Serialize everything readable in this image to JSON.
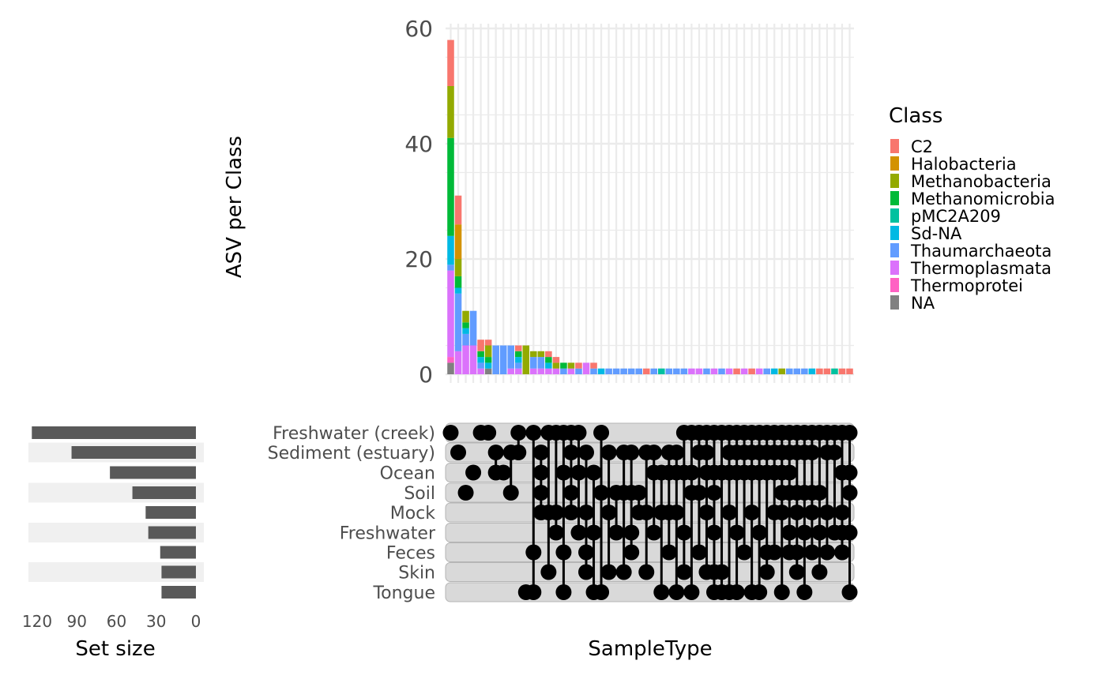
{
  "chart_data": {
    "type": "upset",
    "xlabel": "SampleType",
    "ylabel": "ASV per Class",
    "set_size_label": "Set size",
    "ylim": [
      0,
      60
    ],
    "y_ticks": [
      0,
      20,
      40,
      60
    ],
    "set_size_ticks": [
      120,
      90,
      60,
      30,
      0
    ],
    "set_size_range": [
      0,
      125
    ],
    "legend": {
      "title": "Class",
      "position": "right",
      "entries": [
        {
          "name": "C2",
          "color": "#F8766D"
        },
        {
          "name": "Halobacteria",
          "color": "#D39200"
        },
        {
          "name": "Methanobacteria",
          "color": "#93AA00"
        },
        {
          "name": "Methanomicrobia",
          "color": "#00BA38"
        },
        {
          "name": "pMC2A209",
          "color": "#00C19F"
        },
        {
          "name": "Sd-NA",
          "color": "#00B9E3"
        },
        {
          "name": "Thaumarchaeota",
          "color": "#619CFF"
        },
        {
          "name": "Thermoplasmata",
          "color": "#DB72FB"
        },
        {
          "name": "Thermoprotei",
          "color": "#FF61C3"
        },
        {
          "name": "NA",
          "color": "#808080"
        }
      ]
    },
    "sets": [
      {
        "name": "Freshwater (creek)",
        "size": 124
      },
      {
        "name": "Sediment (estuary)",
        "size": 94
      },
      {
        "name": "Ocean",
        "size": 65
      },
      {
        "name": "Soil",
        "size": 48
      },
      {
        "name": "Mock",
        "size": 38
      },
      {
        "name": "Freshwater",
        "size": 36
      },
      {
        "name": "Feces",
        "size": 27
      },
      {
        "name": "Skin",
        "size": 26
      },
      {
        "name": "Tongue",
        "size": 26
      }
    ],
    "intersections": [
      {
        "stack": [
          {
            "class": "NA",
            "value": 2
          },
          {
            "class": "Thermoprotei",
            "value": 1
          },
          {
            "class": "Thermoplasmata",
            "value": 15
          },
          {
            "class": "Thaumarchaeota",
            "value": 1
          },
          {
            "class": "Sd-NA",
            "value": 5
          },
          {
            "class": "Methanomicrobia",
            "value": 17
          },
          {
            "class": "Methanobacteria",
            "value": 9
          },
          {
            "class": "C2",
            "value": 8
          }
        ],
        "sets": [
          0
        ]
      },
      {
        "stack": [
          {
            "class": "Thermoplasmata",
            "value": 4
          },
          {
            "class": "Thaumarchaeota",
            "value": 10
          },
          {
            "class": "Sd-NA",
            "value": 1
          },
          {
            "class": "Methanomicrobia",
            "value": 2
          },
          {
            "class": "Methanobacteria",
            "value": 3
          },
          {
            "class": "Halobacteria",
            "value": 6
          },
          {
            "class": "C2",
            "value": 5
          }
        ],
        "sets": [
          1
        ]
      },
      {
        "stack": [
          {
            "class": "Thermoplasmata",
            "value": 5
          },
          {
            "class": "Thaumarchaeota",
            "value": 2
          },
          {
            "class": "Sd-NA",
            "value": 1
          },
          {
            "class": "Methanomicrobia",
            "value": 1
          },
          {
            "class": "Methanobacteria",
            "value": 2
          }
        ],
        "sets": [
          3
        ]
      },
      {
        "stack": [
          {
            "class": "Thermoplasmata",
            "value": 5
          },
          {
            "class": "Thaumarchaeota",
            "value": 6
          }
        ],
        "sets": [
          2
        ]
      },
      {
        "stack": [
          {
            "class": "Thermoplasmata",
            "value": 1
          },
          {
            "class": "Thaumarchaeota",
            "value": 1
          },
          {
            "class": "Sd-NA",
            "value": 1
          },
          {
            "class": "Methanomicrobia",
            "value": 1
          },
          {
            "class": "C2",
            "value": 2
          }
        ],
        "sets": [
          0
        ]
      },
      {
        "stack": [
          {
            "class": "NA",
            "value": 1
          },
          {
            "class": "Sd-NA",
            "value": 1
          },
          {
            "class": "Methanomicrobia",
            "value": 1
          },
          {
            "class": "Methanobacteria",
            "value": 2
          },
          {
            "class": "C2",
            "value": 1
          }
        ],
        "sets": [
          0
        ]
      },
      {
        "stack": [
          {
            "class": "Thaumarchaeota",
            "value": 5
          }
        ],
        "sets": [
          1,
          2
        ]
      },
      {
        "stack": [
          {
            "class": "Thaumarchaeota",
            "value": 5
          }
        ],
        "sets": [
          2
        ]
      },
      {
        "stack": [
          {
            "class": "Thermoplasmata",
            "value": 1
          },
          {
            "class": "Thaumarchaeota",
            "value": 4
          }
        ],
        "sets": [
          1,
          3
        ]
      },
      {
        "stack": [
          {
            "class": "Thermoplasmata",
            "value": 1
          },
          {
            "class": "Thaumarchaeota",
            "value": 1
          },
          {
            "class": "Sd-NA",
            "value": 1
          },
          {
            "class": "Methanomicrobia",
            "value": 1
          },
          {
            "class": "C2",
            "value": 1
          }
        ],
        "sets": [
          0,
          1
        ]
      },
      {
        "stack": [
          {
            "class": "Methanobacteria",
            "value": 5
          }
        ],
        "sets": [
          8
        ]
      },
      {
        "stack": [
          {
            "class": "Thermoplasmata",
            "value": 1
          },
          {
            "class": "Thaumarchaeota",
            "value": 2
          },
          {
            "class": "Methanobacteria",
            "value": 1
          }
        ],
        "sets": [
          0,
          6,
          8
        ]
      },
      {
        "stack": [
          {
            "class": "Thermoplasmata",
            "value": 1
          },
          {
            "class": "Thaumarchaeota",
            "value": 2
          },
          {
            "class": "Methanobacteria",
            "value": 1
          }
        ],
        "sets": [
          1,
          2,
          3,
          4
        ]
      },
      {
        "stack": [
          {
            "class": "Thermoplasmata",
            "value": 1
          },
          {
            "class": "Sd-NA",
            "value": 1
          },
          {
            "class": "Methanomicrobia",
            "value": 1
          },
          {
            "class": "C2",
            "value": 1
          }
        ],
        "sets": [
          0,
          4,
          7
        ]
      },
      {
        "stack": [
          {
            "class": "Thermoplasmata",
            "value": 1
          },
          {
            "class": "Methanobacteria",
            "value": 1
          },
          {
            "class": "C2",
            "value": 1
          }
        ],
        "sets": [
          0,
          4,
          5
        ]
      },
      {
        "stack": [
          {
            "class": "Thaumarchaeota",
            "value": 1
          },
          {
            "class": "Methanomicrobia",
            "value": 1
          }
        ],
        "sets": [
          0,
          2,
          6,
          8
        ]
      },
      {
        "stack": [
          {
            "class": "Thermoplasmata",
            "value": 1
          },
          {
            "class": "Methanobacteria",
            "value": 1
          }
        ],
        "sets": [
          0,
          1,
          3,
          4
        ]
      },
      {
        "stack": [
          {
            "class": "Thaumarchaeota",
            "value": 1
          },
          {
            "class": "C2",
            "value": 1
          }
        ],
        "sets": [
          0,
          2,
          5
        ]
      },
      {
        "stack": [
          {
            "class": "Thermoplasmata",
            "value": 2
          }
        ],
        "sets": [
          1,
          4,
          6,
          7
        ]
      },
      {
        "stack": [
          {
            "class": "Thaumarchaeota",
            "value": 1
          },
          {
            "class": "C2",
            "value": 1
          }
        ],
        "sets": [
          2,
          5,
          8
        ]
      },
      {
        "stack": [
          {
            "class": "Sd-NA",
            "value": 1
          }
        ],
        "sets": [
          0,
          3,
          8
        ]
      },
      {
        "stack": [
          {
            "class": "Thaumarchaeota",
            "value": 1
          }
        ],
        "sets": [
          1,
          4,
          7
        ]
      },
      {
        "stack": [
          {
            "class": "Thaumarchaeota",
            "value": 1
          }
        ],
        "sets": [
          3,
          5
        ]
      },
      {
        "stack": [
          {
            "class": "Thaumarchaeota",
            "value": 1
          }
        ],
        "sets": [
          1,
          3,
          7
        ]
      },
      {
        "stack": [
          {
            "class": "Thaumarchaeota",
            "value": 1
          }
        ],
        "sets": [
          1,
          3,
          5,
          6
        ]
      },
      {
        "stack": [
          {
            "class": "Thaumarchaeota",
            "value": 1
          }
        ],
        "sets": [
          3,
          4
        ]
      },
      {
        "stack": [
          {
            "class": "C2",
            "value": 1
          }
        ],
        "sets": [
          1,
          4,
          7
        ]
      },
      {
        "stack": [
          {
            "class": "Thaumarchaeota",
            "value": 1
          }
        ],
        "sets": [
          1,
          2,
          5
        ]
      },
      {
        "stack": [
          {
            "class": "pMC2A209",
            "value": 1
          }
        ],
        "sets": [
          2,
          4,
          8
        ]
      },
      {
        "stack": [
          {
            "class": "Thaumarchaeota",
            "value": 1
          }
        ],
        "sets": [
          1,
          2,
          4,
          6
        ]
      },
      {
        "stack": [
          {
            "class": "Thaumarchaeota",
            "value": 1
          }
        ],
        "sets": [
          1,
          2,
          4,
          8
        ]
      },
      {
        "stack": [
          {
            "class": "Thaumarchaeota",
            "value": 1
          }
        ],
        "sets": [
          0,
          2,
          5,
          7
        ]
      },
      {
        "stack": [
          {
            "class": "Thermoplasmata",
            "value": 1
          }
        ],
        "sets": [
          0,
          2,
          3,
          8
        ]
      },
      {
        "stack": [
          {
            "class": "Thermoplasmata",
            "value": 1
          }
        ],
        "sets": [
          0,
          1,
          3,
          6
        ]
      },
      {
        "stack": [
          {
            "class": "Thaumarchaeota",
            "value": 1
          }
        ],
        "sets": [
          0,
          1,
          2,
          4,
          7
        ]
      },
      {
        "stack": [
          {
            "class": "Thermoplasmata",
            "value": 1
          }
        ],
        "sets": [
          0,
          2,
          3,
          5,
          7,
          8
        ]
      },
      {
        "stack": [
          {
            "class": "Thaumarchaeota",
            "value": 1
          }
        ],
        "sets": [
          0,
          2,
          7,
          8
        ]
      },
      {
        "stack": [
          {
            "class": "Thermoplasmata",
            "value": 1
          }
        ],
        "sets": [
          0,
          1,
          2,
          4,
          8
        ]
      },
      {
        "stack": [
          {
            "class": "C2",
            "value": 1
          }
        ],
        "sets": [
          0,
          1,
          2,
          5,
          8
        ]
      },
      {
        "stack": [
          {
            "class": "Thermoplasmata",
            "value": 1
          }
        ],
        "sets": [
          0,
          1,
          2,
          6
        ]
      },
      {
        "stack": [
          {
            "class": "C2",
            "value": 1
          }
        ],
        "sets": [
          0,
          1,
          2,
          4,
          8
        ]
      },
      {
        "stack": [
          {
            "class": "Thermoplasmata",
            "value": 1
          }
        ],
        "sets": [
          0,
          1,
          2,
          5,
          8
        ]
      },
      {
        "stack": [
          {
            "class": "Thaumarchaeota",
            "value": 1
          }
        ],
        "sets": [
          0,
          1,
          2,
          6,
          7
        ]
      },
      {
        "stack": [
          {
            "class": "Sd-NA",
            "value": 1
          }
        ],
        "sets": [
          0,
          1,
          2,
          4,
          6
        ]
      },
      {
        "stack": [
          {
            "class": "Methanobacteria",
            "value": 1
          }
        ],
        "sets": [
          0,
          1,
          2,
          3,
          4,
          8
        ]
      },
      {
        "stack": [
          {
            "class": "Thaumarchaeota",
            "value": 1
          }
        ],
        "sets": [
          0,
          1,
          2,
          3,
          5,
          6
        ]
      },
      {
        "stack": [
          {
            "class": "Thaumarchaeota",
            "value": 1
          }
        ],
        "sets": [
          0,
          1,
          3,
          4,
          6,
          7
        ]
      },
      {
        "stack": [
          {
            "class": "Thaumarchaeota",
            "value": 1
          }
        ],
        "sets": [
          0,
          1,
          3,
          5,
          8
        ]
      },
      {
        "stack": [
          {
            "class": "Sd-NA",
            "value": 1
          }
        ],
        "sets": [
          0,
          1,
          3,
          4,
          6
        ]
      },
      {
        "stack": [
          {
            "class": "C2",
            "value": 1
          }
        ],
        "sets": [
          0,
          3,
          5,
          7
        ]
      },
      {
        "stack": [
          {
            "class": "C2",
            "value": 1
          }
        ],
        "sets": [
          0,
          1,
          4,
          6
        ]
      },
      {
        "stack": [
          {
            "class": "pMC2A209",
            "value": 1
          }
        ],
        "sets": [
          0,
          1,
          5
        ]
      },
      {
        "stack": [
          {
            "class": "C2",
            "value": 1
          }
        ],
        "sets": [
          0,
          2,
          4,
          5,
          6
        ]
      },
      {
        "stack": [
          {
            "class": "C2",
            "value": 1
          }
        ],
        "sets": [
          0,
          2,
          3,
          5,
          8
        ]
      }
    ]
  }
}
